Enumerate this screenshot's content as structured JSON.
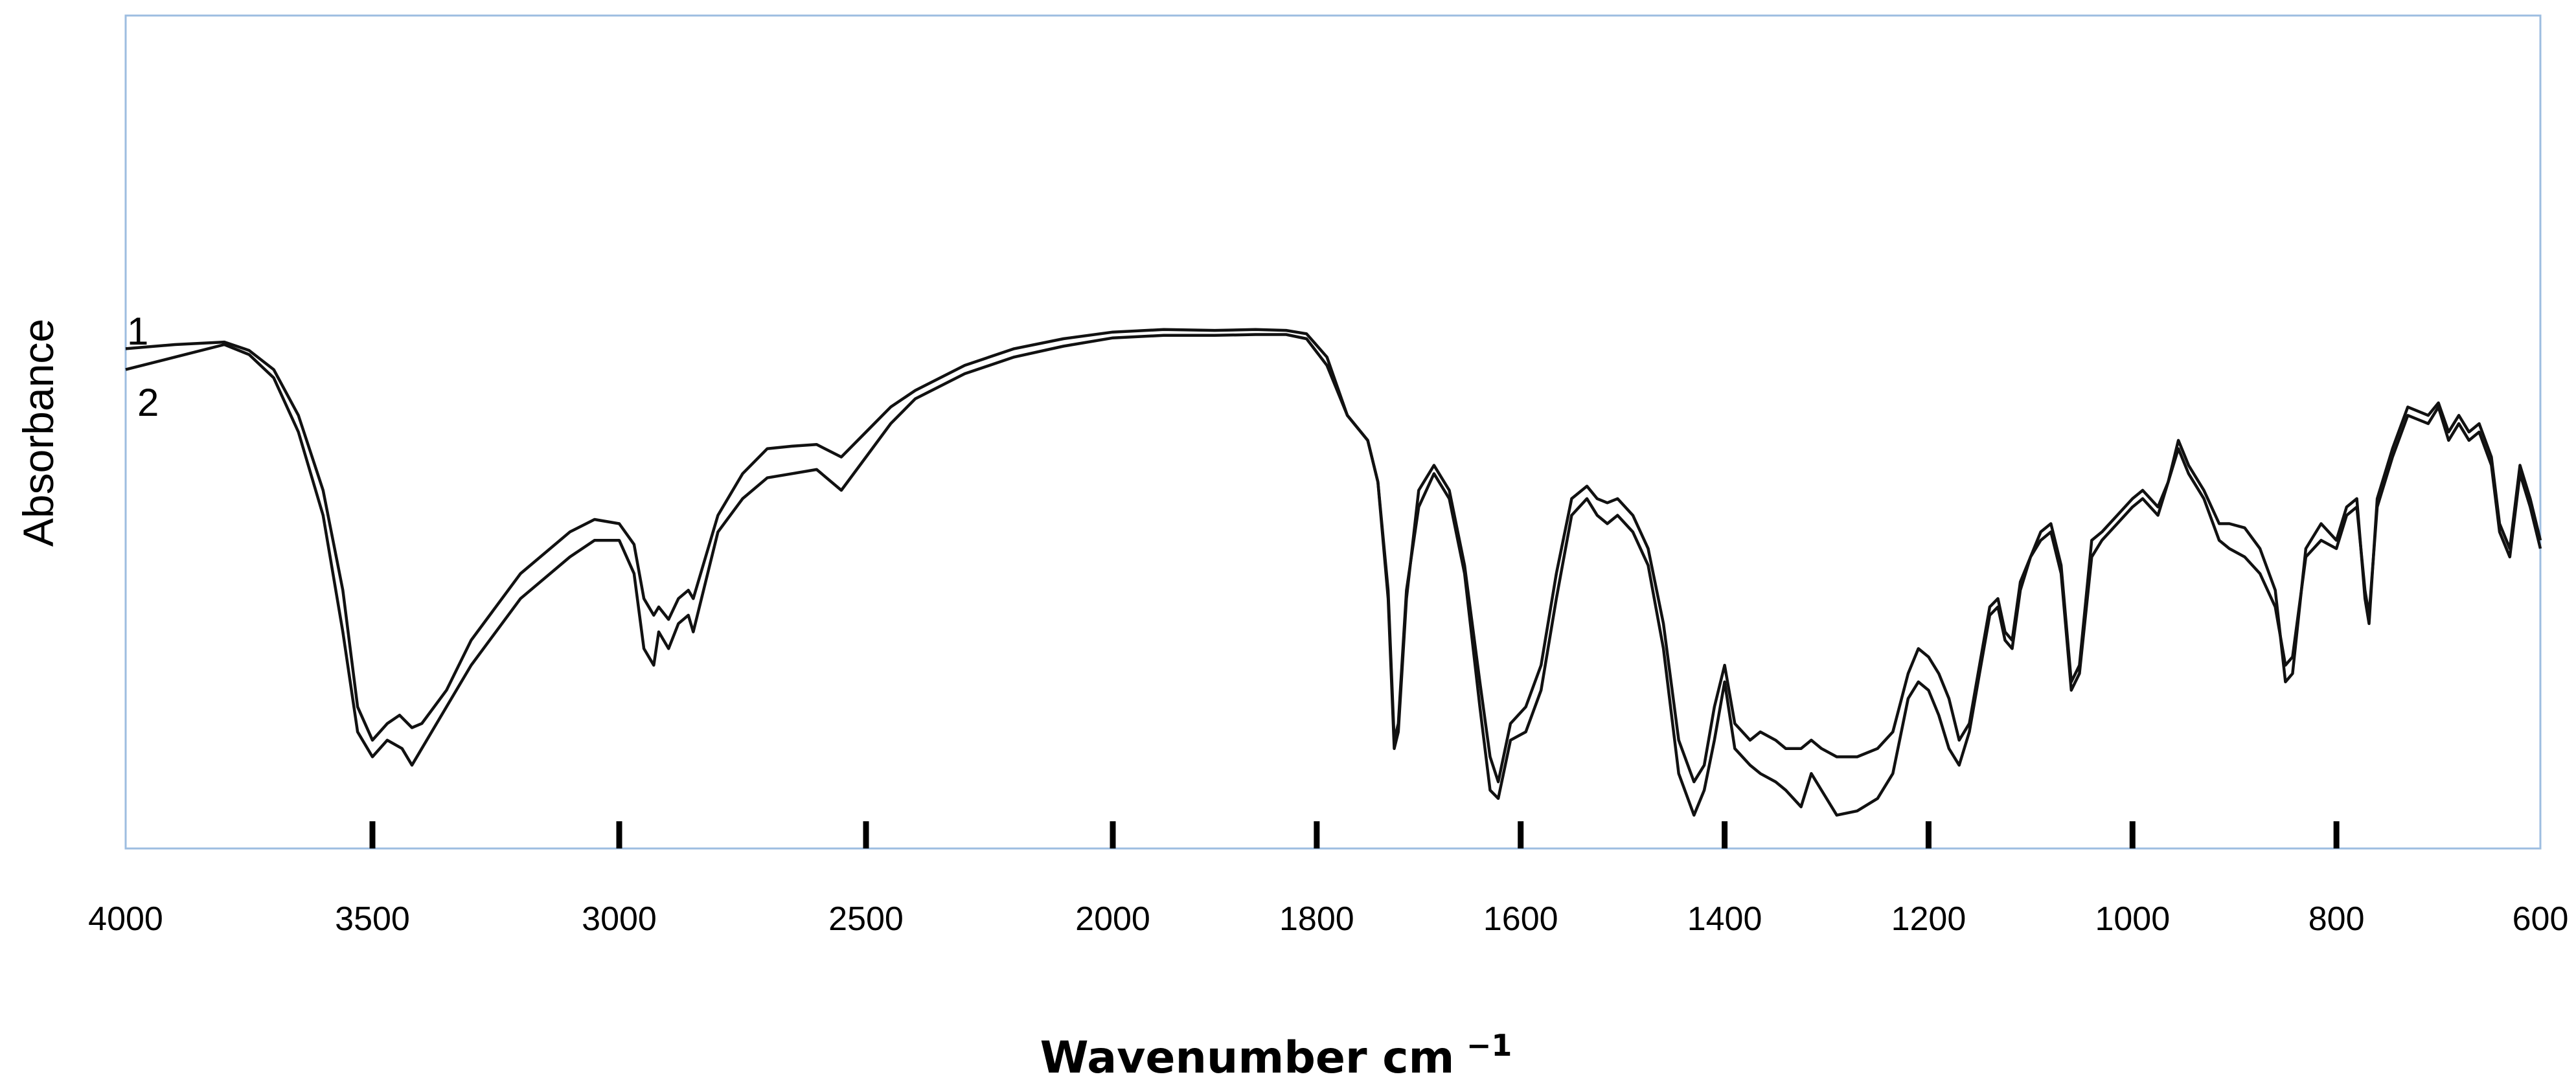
{
  "chart_data": {
    "type": "line",
    "title": "",
    "xlabel": "Wavenumber cm",
    "xlabel_superscript": "−1",
    "ylabel": "Absorbance",
    "x_reversed": true,
    "x_scale": "piecewise: 4000–2000 and 2000–600 segments",
    "xlim": [
      4000,
      600
    ],
    "y_scale_labelled": false,
    "ylim": [
      0,
      1
    ],
    "grid": false,
    "legend": "none (curve numbers at left edge)",
    "ticks": [
      "4000",
      "3500",
      "3000",
      "2500",
      "2000",
      "1800",
      "1600",
      "1400",
      "1200",
      "1000",
      "800",
      "600"
    ],
    "series": [
      {
        "name": "1",
        "color": "#111111",
        "points": [
          [
            4000,
            0.6
          ],
          [
            3900,
            0.605
          ],
          [
            3800,
            0.608
          ],
          [
            3750,
            0.598
          ],
          [
            3700,
            0.575
          ],
          [
            3650,
            0.52
          ],
          [
            3600,
            0.43
          ],
          [
            3560,
            0.31
          ],
          [
            3530,
            0.17
          ],
          [
            3500,
            0.13
          ],
          [
            3470,
            0.15
          ],
          [
            3445,
            0.16
          ],
          [
            3420,
            0.145
          ],
          [
            3400,
            0.15
          ],
          [
            3350,
            0.19
          ],
          [
            3300,
            0.25
          ],
          [
            3200,
            0.33
          ],
          [
            3100,
            0.38
          ],
          [
            3050,
            0.395
          ],
          [
            3000,
            0.39
          ],
          [
            2970,
            0.365
          ],
          [
            2950,
            0.3
          ],
          [
            2930,
            0.28
          ],
          [
            2920,
            0.29
          ],
          [
            2900,
            0.275
          ],
          [
            2880,
            0.3
          ],
          [
            2860,
            0.31
          ],
          [
            2850,
            0.3
          ],
          [
            2800,
            0.4
          ],
          [
            2750,
            0.45
          ],
          [
            2700,
            0.48
          ],
          [
            2650,
            0.483
          ],
          [
            2600,
            0.485
          ],
          [
            2550,
            0.47
          ],
          [
            2500,
            0.5
          ],
          [
            2450,
            0.53
          ],
          [
            2400,
            0.55
          ],
          [
            2300,
            0.58
          ],
          [
            2200,
            0.6
          ],
          [
            2100,
            0.612
          ],
          [
            2000,
            0.62
          ],
          [
            1950,
            0.623
          ],
          [
            1900,
            0.622
          ],
          [
            1860,
            0.623
          ],
          [
            1830,
            0.622
          ],
          [
            1810,
            0.618
          ],
          [
            1790,
            0.59
          ],
          [
            1770,
            0.52
          ],
          [
            1750,
            0.49
          ],
          [
            1740,
            0.44
          ],
          [
            1730,
            0.3
          ],
          [
            1724,
            0.12
          ],
          [
            1720,
            0.14
          ],
          [
            1712,
            0.3
          ],
          [
            1700,
            0.43
          ],
          [
            1685,
            0.46
          ],
          [
            1670,
            0.43
          ],
          [
            1655,
            0.34
          ],
          [
            1640,
            0.2
          ],
          [
            1630,
            0.11
          ],
          [
            1622,
            0.08
          ],
          [
            1610,
            0.15
          ],
          [
            1595,
            0.17
          ],
          [
            1580,
            0.22
          ],
          [
            1565,
            0.33
          ],
          [
            1550,
            0.42
          ],
          [
            1535,
            0.435
          ],
          [
            1525,
            0.42
          ],
          [
            1515,
            0.415
          ],
          [
            1505,
            0.42
          ],
          [
            1490,
            0.4
          ],
          [
            1475,
            0.36
          ],
          [
            1460,
            0.27
          ],
          [
            1445,
            0.13
          ],
          [
            1430,
            0.08
          ],
          [
            1420,
            0.1
          ],
          [
            1410,
            0.17
          ],
          [
            1400,
            0.22
          ],
          [
            1390,
            0.15
          ],
          [
            1375,
            0.13
          ],
          [
            1365,
            0.14
          ],
          [
            1350,
            0.13
          ],
          [
            1340,
            0.12
          ],
          [
            1325,
            0.12
          ],
          [
            1315,
            0.13
          ],
          [
            1305,
            0.12
          ],
          [
            1290,
            0.11
          ],
          [
            1270,
            0.11
          ],
          [
            1250,
            0.12
          ],
          [
            1235,
            0.14
          ],
          [
            1220,
            0.21
          ],
          [
            1210,
            0.24
          ],
          [
            1200,
            0.23
          ],
          [
            1190,
            0.21
          ],
          [
            1180,
            0.18
          ],
          [
            1170,
            0.13
          ],
          [
            1160,
            0.15
          ],
          [
            1150,
            0.22
          ],
          [
            1140,
            0.29
          ],
          [
            1132,
            0.3
          ],
          [
            1125,
            0.26
          ],
          [
            1118,
            0.25
          ],
          [
            1110,
            0.32
          ],
          [
            1100,
            0.35
          ],
          [
            1090,
            0.38
          ],
          [
            1080,
            0.39
          ],
          [
            1070,
            0.34
          ],
          [
            1060,
            0.2
          ],
          [
            1052,
            0.22
          ],
          [
            1040,
            0.37
          ],
          [
            1030,
            0.38
          ],
          [
            1015,
            0.4
          ],
          [
            1000,
            0.42
          ],
          [
            990,
            0.43
          ],
          [
            975,
            0.41
          ],
          [
            965,
            0.44
          ],
          [
            955,
            0.49
          ],
          [
            945,
            0.46
          ],
          [
            930,
            0.43
          ],
          [
            915,
            0.39
          ],
          [
            905,
            0.39
          ],
          [
            890,
            0.385
          ],
          [
            875,
            0.36
          ],
          [
            860,
            0.31
          ],
          [
            850,
            0.2
          ],
          [
            843,
            0.21
          ],
          [
            830,
            0.36
          ],
          [
            815,
            0.39
          ],
          [
            800,
            0.37
          ],
          [
            790,
            0.41
          ],
          [
            780,
            0.42
          ],
          [
            772,
            0.3
          ],
          [
            768,
            0.27
          ],
          [
            760,
            0.42
          ],
          [
            745,
            0.48
          ],
          [
            730,
            0.53
          ],
          [
            710,
            0.52
          ],
          [
            700,
            0.535
          ],
          [
            690,
            0.5
          ],
          [
            680,
            0.52
          ],
          [
            670,
            0.5
          ],
          [
            660,
            0.51
          ],
          [
            648,
            0.47
          ],
          [
            640,
            0.39
          ],
          [
            630,
            0.36
          ],
          [
            620,
            0.46
          ],
          [
            610,
            0.42
          ],
          [
            600,
            0.37
          ]
        ]
      },
      {
        "name": "2",
        "color": "#111111",
        "points": [
          [
            4000,
            0.575
          ],
          [
            3900,
            0.59
          ],
          [
            3800,
            0.605
          ],
          [
            3750,
            0.593
          ],
          [
            3700,
            0.565
          ],
          [
            3650,
            0.5
          ],
          [
            3600,
            0.4
          ],
          [
            3560,
            0.26
          ],
          [
            3530,
            0.14
          ],
          [
            3500,
            0.11
          ],
          [
            3470,
            0.13
          ],
          [
            3440,
            0.12
          ],
          [
            3420,
            0.1
          ],
          [
            3400,
            0.12
          ],
          [
            3350,
            0.17
          ],
          [
            3300,
            0.22
          ],
          [
            3200,
            0.3
          ],
          [
            3100,
            0.35
          ],
          [
            3050,
            0.37
          ],
          [
            3000,
            0.37
          ],
          [
            2970,
            0.33
          ],
          [
            2950,
            0.24
          ],
          [
            2930,
            0.22
          ],
          [
            2920,
            0.26
          ],
          [
            2900,
            0.24
          ],
          [
            2880,
            0.27
          ],
          [
            2860,
            0.28
          ],
          [
            2850,
            0.26
          ],
          [
            2800,
            0.38
          ],
          [
            2750,
            0.42
          ],
          [
            2700,
            0.445
          ],
          [
            2650,
            0.45
          ],
          [
            2600,
            0.455
          ],
          [
            2550,
            0.43
          ],
          [
            2500,
            0.47
          ],
          [
            2450,
            0.51
          ],
          [
            2400,
            0.54
          ],
          [
            2300,
            0.57
          ],
          [
            2200,
            0.59
          ],
          [
            2100,
            0.603
          ],
          [
            2000,
            0.613
          ],
          [
            1950,
            0.616
          ],
          [
            1900,
            0.616
          ],
          [
            1860,
            0.617
          ],
          [
            1830,
            0.617
          ],
          [
            1810,
            0.612
          ],
          [
            1790,
            0.58
          ],
          [
            1770,
            0.52
          ],
          [
            1750,
            0.49
          ],
          [
            1740,
            0.44
          ],
          [
            1730,
            0.31
          ],
          [
            1724,
            0.13
          ],
          [
            1720,
            0.15
          ],
          [
            1712,
            0.31
          ],
          [
            1700,
            0.41
          ],
          [
            1685,
            0.45
          ],
          [
            1670,
            0.42
          ],
          [
            1655,
            0.33
          ],
          [
            1640,
            0.17
          ],
          [
            1630,
            0.07
          ],
          [
            1622,
            0.06
          ],
          [
            1610,
            0.13
          ],
          [
            1595,
            0.14
          ],
          [
            1580,
            0.19
          ],
          [
            1565,
            0.3
          ],
          [
            1550,
            0.4
          ],
          [
            1535,
            0.42
          ],
          [
            1525,
            0.4
          ],
          [
            1515,
            0.39
          ],
          [
            1505,
            0.4
          ],
          [
            1490,
            0.38
          ],
          [
            1475,
            0.34
          ],
          [
            1460,
            0.24
          ],
          [
            1445,
            0.09
          ],
          [
            1430,
            0.04
          ],
          [
            1420,
            0.07
          ],
          [
            1410,
            0.13
          ],
          [
            1400,
            0.2
          ],
          [
            1390,
            0.12
          ],
          [
            1375,
            0.1
          ],
          [
            1365,
            0.09
          ],
          [
            1350,
            0.08
          ],
          [
            1340,
            0.07
          ],
          [
            1325,
            0.05
          ],
          [
            1315,
            0.09
          ],
          [
            1305,
            0.07
          ],
          [
            1290,
            0.04
          ],
          [
            1270,
            0.045
          ],
          [
            1250,
            0.06
          ],
          [
            1235,
            0.09
          ],
          [
            1220,
            0.18
          ],
          [
            1210,
            0.2
          ],
          [
            1200,
            0.19
          ],
          [
            1190,
            0.16
          ],
          [
            1180,
            0.12
          ],
          [
            1170,
            0.1
          ],
          [
            1160,
            0.14
          ],
          [
            1150,
            0.21
          ],
          [
            1140,
            0.28
          ],
          [
            1132,
            0.29
          ],
          [
            1125,
            0.25
          ],
          [
            1118,
            0.24
          ],
          [
            1110,
            0.31
          ],
          [
            1100,
            0.35
          ],
          [
            1090,
            0.37
          ],
          [
            1080,
            0.38
          ],
          [
            1070,
            0.33
          ],
          [
            1060,
            0.19
          ],
          [
            1052,
            0.21
          ],
          [
            1040,
            0.35
          ],
          [
            1030,
            0.37
          ],
          [
            1015,
            0.39
          ],
          [
            1000,
            0.41
          ],
          [
            990,
            0.42
          ],
          [
            975,
            0.4
          ],
          [
            965,
            0.44
          ],
          [
            955,
            0.48
          ],
          [
            945,
            0.45
          ],
          [
            930,
            0.42
          ],
          [
            915,
            0.37
          ],
          [
            905,
            0.36
          ],
          [
            890,
            0.35
          ],
          [
            875,
            0.33
          ],
          [
            860,
            0.29
          ],
          [
            850,
            0.22
          ],
          [
            843,
            0.23
          ],
          [
            830,
            0.35
          ],
          [
            815,
            0.37
          ],
          [
            800,
            0.36
          ],
          [
            790,
            0.4
          ],
          [
            780,
            0.41
          ],
          [
            772,
            0.31
          ],
          [
            768,
            0.28
          ],
          [
            760,
            0.41
          ],
          [
            745,
            0.47
          ],
          [
            730,
            0.52
          ],
          [
            710,
            0.51
          ],
          [
            700,
            0.53
          ],
          [
            690,
            0.49
          ],
          [
            680,
            0.51
          ],
          [
            670,
            0.49
          ],
          [
            660,
            0.5
          ],
          [
            648,
            0.46
          ],
          [
            640,
            0.38
          ],
          [
            630,
            0.35
          ],
          [
            620,
            0.45
          ],
          [
            610,
            0.41
          ],
          [
            600,
            0.36
          ]
        ]
      }
    ]
  }
}
